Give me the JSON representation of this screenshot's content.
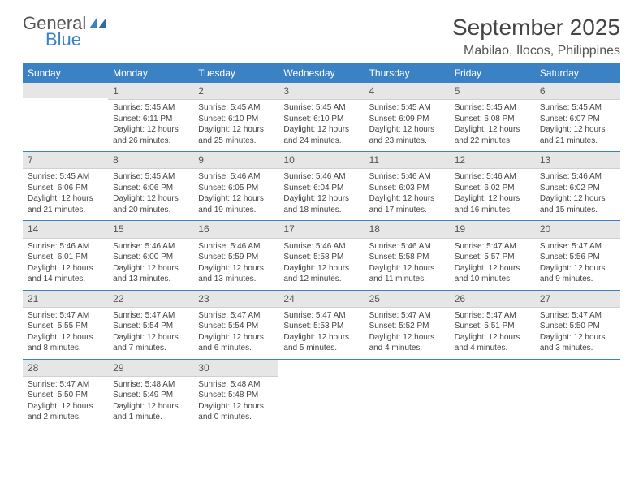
{
  "logo": {
    "word1": "General",
    "word2": "Blue"
  },
  "title": "September 2025",
  "location": "Mabilao, Ilocos, Philippines",
  "colors": {
    "header_bg": "#3b82c4",
    "header_text": "#ffffff",
    "band_bg": "#e6e6e6",
    "rule": "#3b82c4",
    "text": "#444444",
    "page_bg": "#ffffff"
  },
  "typography": {
    "title_fontsize": 28,
    "location_fontsize": 16,
    "dayhead_fontsize": 12,
    "cell_fontsize": 10
  },
  "layout": {
    "cols": 7,
    "rows": 5,
    "start_col": 1
  },
  "day_headers": [
    "Sunday",
    "Monday",
    "Tuesday",
    "Wednesday",
    "Thursday",
    "Friday",
    "Saturday"
  ],
  "days": [
    {
      "n": 1,
      "sunrise": "5:45 AM",
      "sunset": "6:11 PM",
      "daylight": "12 hours and 26 minutes."
    },
    {
      "n": 2,
      "sunrise": "5:45 AM",
      "sunset": "6:10 PM",
      "daylight": "12 hours and 25 minutes."
    },
    {
      "n": 3,
      "sunrise": "5:45 AM",
      "sunset": "6:10 PM",
      "daylight": "12 hours and 24 minutes."
    },
    {
      "n": 4,
      "sunrise": "5:45 AM",
      "sunset": "6:09 PM",
      "daylight": "12 hours and 23 minutes."
    },
    {
      "n": 5,
      "sunrise": "5:45 AM",
      "sunset": "6:08 PM",
      "daylight": "12 hours and 22 minutes."
    },
    {
      "n": 6,
      "sunrise": "5:45 AM",
      "sunset": "6:07 PM",
      "daylight": "12 hours and 21 minutes."
    },
    {
      "n": 7,
      "sunrise": "5:45 AM",
      "sunset": "6:06 PM",
      "daylight": "12 hours and 21 minutes."
    },
    {
      "n": 8,
      "sunrise": "5:45 AM",
      "sunset": "6:06 PM",
      "daylight": "12 hours and 20 minutes."
    },
    {
      "n": 9,
      "sunrise": "5:46 AM",
      "sunset": "6:05 PM",
      "daylight": "12 hours and 19 minutes."
    },
    {
      "n": 10,
      "sunrise": "5:46 AM",
      "sunset": "6:04 PM",
      "daylight": "12 hours and 18 minutes."
    },
    {
      "n": 11,
      "sunrise": "5:46 AM",
      "sunset": "6:03 PM",
      "daylight": "12 hours and 17 minutes."
    },
    {
      "n": 12,
      "sunrise": "5:46 AM",
      "sunset": "6:02 PM",
      "daylight": "12 hours and 16 minutes."
    },
    {
      "n": 13,
      "sunrise": "5:46 AM",
      "sunset": "6:02 PM",
      "daylight": "12 hours and 15 minutes."
    },
    {
      "n": 14,
      "sunrise": "5:46 AM",
      "sunset": "6:01 PM",
      "daylight": "12 hours and 14 minutes."
    },
    {
      "n": 15,
      "sunrise": "5:46 AM",
      "sunset": "6:00 PM",
      "daylight": "12 hours and 13 minutes."
    },
    {
      "n": 16,
      "sunrise": "5:46 AM",
      "sunset": "5:59 PM",
      "daylight": "12 hours and 13 minutes."
    },
    {
      "n": 17,
      "sunrise": "5:46 AM",
      "sunset": "5:58 PM",
      "daylight": "12 hours and 12 minutes."
    },
    {
      "n": 18,
      "sunrise": "5:46 AM",
      "sunset": "5:58 PM",
      "daylight": "12 hours and 11 minutes."
    },
    {
      "n": 19,
      "sunrise": "5:47 AM",
      "sunset": "5:57 PM",
      "daylight": "12 hours and 10 minutes."
    },
    {
      "n": 20,
      "sunrise": "5:47 AM",
      "sunset": "5:56 PM",
      "daylight": "12 hours and 9 minutes."
    },
    {
      "n": 21,
      "sunrise": "5:47 AM",
      "sunset": "5:55 PM",
      "daylight": "12 hours and 8 minutes."
    },
    {
      "n": 22,
      "sunrise": "5:47 AM",
      "sunset": "5:54 PM",
      "daylight": "12 hours and 7 minutes."
    },
    {
      "n": 23,
      "sunrise": "5:47 AM",
      "sunset": "5:54 PM",
      "daylight": "12 hours and 6 minutes."
    },
    {
      "n": 24,
      "sunrise": "5:47 AM",
      "sunset": "5:53 PM",
      "daylight": "12 hours and 5 minutes."
    },
    {
      "n": 25,
      "sunrise": "5:47 AM",
      "sunset": "5:52 PM",
      "daylight": "12 hours and 4 minutes."
    },
    {
      "n": 26,
      "sunrise": "5:47 AM",
      "sunset": "5:51 PM",
      "daylight": "12 hours and 4 minutes."
    },
    {
      "n": 27,
      "sunrise": "5:47 AM",
      "sunset": "5:50 PM",
      "daylight": "12 hours and 3 minutes."
    },
    {
      "n": 28,
      "sunrise": "5:47 AM",
      "sunset": "5:50 PM",
      "daylight": "12 hours and 2 minutes."
    },
    {
      "n": 29,
      "sunrise": "5:48 AM",
      "sunset": "5:49 PM",
      "daylight": "12 hours and 1 minute."
    },
    {
      "n": 30,
      "sunrise": "5:48 AM",
      "sunset": "5:48 PM",
      "daylight": "12 hours and 0 minutes."
    }
  ],
  "labels": {
    "sunrise": "Sunrise:",
    "sunset": "Sunset:",
    "daylight": "Daylight:"
  }
}
